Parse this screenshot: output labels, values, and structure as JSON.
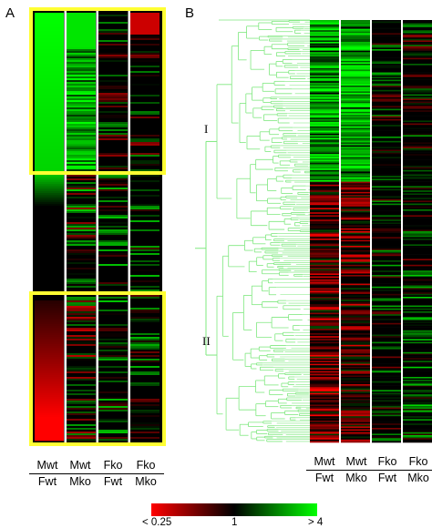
{
  "panel_a": {
    "letter": "A",
    "columns": [
      {
        "numerator": "Mwt",
        "denominator": "Fwt"
      },
      {
        "numerator": "Mwt",
        "denominator": "Mko"
      },
      {
        "numerator": "Fko",
        "denominator": "Fwt"
      },
      {
        "numerator": "Fko",
        "denominator": "Mko"
      }
    ],
    "highlight_color": "#ffff33"
  },
  "panel_b": {
    "letter": "B",
    "clusters": [
      {
        "label": "I"
      },
      {
        "label": "II"
      }
    ],
    "dendrogram_color": "#7fe87f",
    "columns": [
      {
        "numerator": "Mwt",
        "denominator": "Fwt"
      },
      {
        "numerator": "Mwt",
        "denominator": "Mko"
      },
      {
        "numerator": "Fko",
        "denominator": "Fwt"
      },
      {
        "numerator": "Fko",
        "denominator": "Mko"
      }
    ]
  },
  "color_scale": {
    "min_label": "< 0.25",
    "mid_label": "1",
    "max_label": "> 4",
    "low_color": "#ff0000",
    "mid_color": "#000000",
    "high_color": "#00ff00"
  }
}
